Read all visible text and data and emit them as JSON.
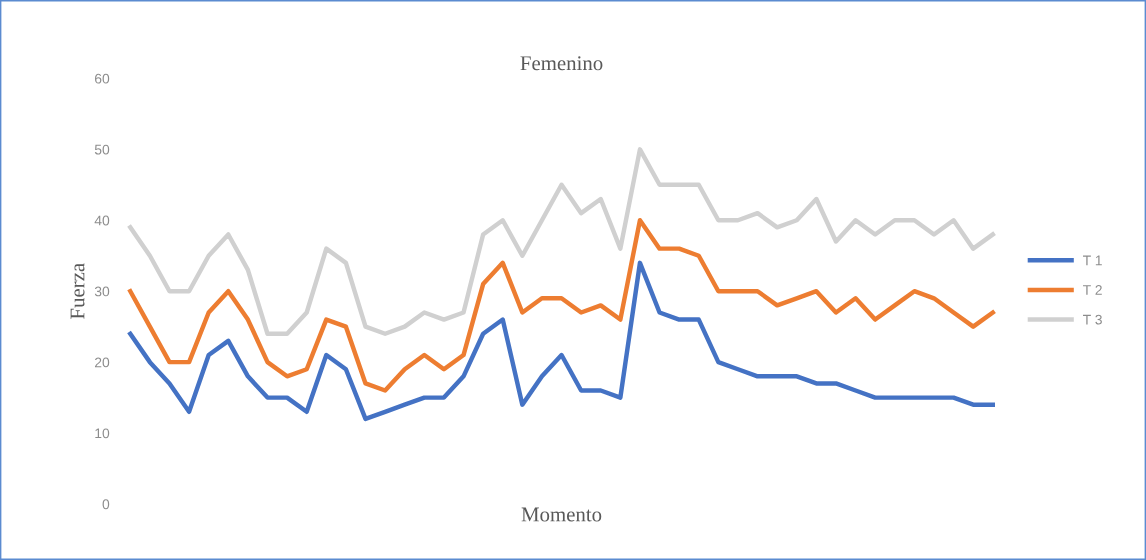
{
  "chart_data": {
    "type": "line",
    "title": "Femenino",
    "xlabel": "Momento",
    "ylabel": "Fuerza",
    "categories": [
      null,
      null,
      null,
      null,
      null,
      null,
      null,
      null,
      null,
      null,
      null,
      null,
      null,
      null,
      null,
      null,
      null,
      null,
      null,
      null,
      null,
      null,
      null,
      null,
      null,
      null,
      null,
      null,
      null,
      null,
      null,
      null,
      null,
      null,
      null,
      null,
      null,
      null,
      null,
      null,
      null,
      null,
      null,
      null,
      null
    ],
    "ylim": [
      0,
      60
    ],
    "yticks": [
      0,
      10,
      20,
      30,
      40,
      50,
      60
    ],
    "grid": false,
    "legend": "right",
    "marker": "none",
    "line_style": "solid",
    "tick_labels": "y",
    "series": [
      {
        "name": "T 1",
        "color": "#4472c4",
        "values": [
          24,
          20,
          17,
          13,
          21,
          23,
          18,
          15,
          15,
          13,
          21,
          19,
          12,
          13,
          14,
          15,
          15,
          18,
          24,
          26,
          14,
          18,
          21,
          16,
          16,
          15,
          34,
          27,
          26,
          26,
          20,
          19,
          18,
          18,
          18,
          17,
          17,
          16,
          15,
          15,
          15,
          15,
          15,
          14,
          14
        ]
      },
      {
        "name": "T 2",
        "color": "#ed7d31",
        "values": [
          30,
          25,
          20,
          20,
          27,
          30,
          26,
          20,
          18,
          19,
          26,
          25,
          17,
          16,
          19,
          21,
          19,
          21,
          31,
          34,
          27,
          29,
          29,
          27,
          28,
          26,
          40,
          36,
          36,
          35,
          30,
          30,
          30,
          28,
          29,
          30,
          27,
          29,
          26,
          28,
          30,
          29,
          27,
          25,
          27
        ]
      },
      {
        "name": "T 3",
        "color": "#d0d0d0",
        "values": [
          39,
          35,
          30,
          30,
          35,
          38,
          33,
          24,
          24,
          27,
          36,
          34,
          25,
          24,
          25,
          27,
          26,
          27,
          38,
          40,
          35,
          40,
          45,
          41,
          43,
          36,
          50,
          45,
          45,
          45,
          40,
          40,
          41,
          39,
          40,
          43,
          37,
          40,
          38,
          40,
          40,
          38,
          40,
          36,
          38
        ]
      }
    ]
  }
}
